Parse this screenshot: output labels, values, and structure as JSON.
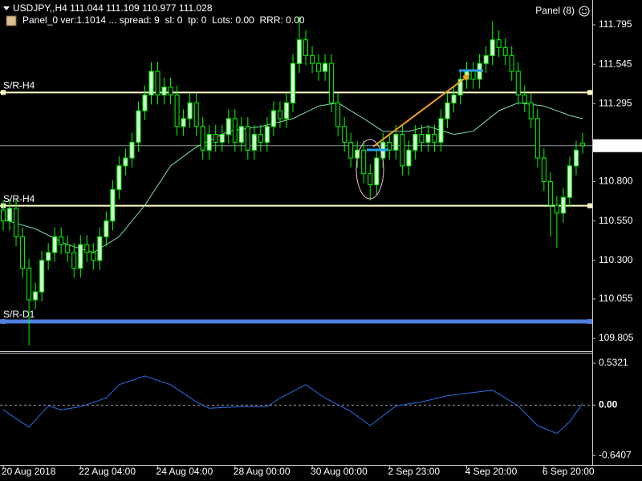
{
  "chart_data": {
    "type": "candlestick",
    "symbol": "USDJPY,,H4",
    "panel_info": "Panel_0 ver:1.1014 ... spread: 9  sl: 0  tp: 0  Lots: 0.00  RRR: 0.00",
    "panel_button": "Panel (8)",
    "up_color": "#d0ffd0",
    "down_color": "#000000",
    "candle_outline": "#00ff00",
    "open": [
      110.62,
      110.55,
      110.63,
      110.45,
      110.25,
      110.05,
      110.1,
      110.3,
      110.35,
      110.45,
      110.4,
      110.35,
      110.25,
      110.4,
      110.35,
      110.3,
      110.45,
      110.55,
      110.75,
      110.9,
      110.95,
      111.05,
      111.25,
      111.35,
      111.5,
      111.35,
      111.4,
      111.35,
      111.15,
      111.2,
      111.3,
      111.15,
      111.0,
      111.1,
      111.05,
      111.1,
      111.2,
      111.05,
      111.15,
      111.0,
      111.1,
      111.05,
      111.15,
      111.25,
      111.2,
      111.3,
      111.55,
      111.7,
      111.6,
      111.55,
      111.5,
      111.55,
      111.3,
      111.15,
      111.05,
      110.95,
      111.0,
      110.85,
      110.78,
      110.95,
      111.05,
      111.0,
      111.1,
      110.9,
      111.0,
      111.1,
      111.05,
      111.1,
      111.05,
      111.2,
      111.3,
      111.35,
      111.45,
      111.5,
      111.45,
      111.55,
      111.6,
      111.7,
      111.65,
      111.6,
      111.5,
      111.35,
      111.3,
      111.2,
      110.95,
      110.8,
      110.65,
      110.6,
      110.7,
      110.9,
      111.044
    ],
    "high": [
      110.68,
      110.69,
      110.69,
      110.51,
      110.31,
      110.16,
      110.36,
      110.41,
      110.51,
      110.51,
      110.46,
      110.41,
      110.46,
      110.46,
      110.41,
      110.51,
      110.61,
      110.81,
      110.96,
      111.01,
      111.11,
      111.31,
      111.41,
      111.56,
      111.56,
      111.46,
      111.46,
      111.41,
      111.26,
      111.36,
      111.36,
      111.21,
      111.16,
      111.16,
      111.16,
      111.26,
      111.26,
      111.21,
      111.21,
      111.16,
      111.16,
      111.21,
      111.31,
      111.31,
      111.36,
      111.61,
      111.85,
      111.76,
      111.66,
      111.61,
      111.61,
      111.61,
      111.36,
      111.21,
      111.11,
      111.06,
      111.06,
      110.91,
      111.01,
      111.11,
      111.11,
      111.16,
      111.16,
      111.06,
      111.16,
      111.16,
      111.16,
      111.16,
      111.26,
      111.36,
      111.41,
      111.51,
      111.56,
      111.56,
      111.61,
      111.66,
      111.82,
      111.76,
      111.71,
      111.66,
      111.56,
      111.41,
      111.36,
      111.26,
      111.01,
      110.86,
      110.71,
      110.76,
      110.96,
      111.06,
      111.109
    ],
    "low": [
      110.49,
      110.49,
      110.39,
      110.19,
      109.76,
      109.99,
      110.04,
      110.24,
      110.29,
      110.34,
      110.29,
      110.19,
      110.19,
      110.29,
      110.24,
      110.24,
      110.39,
      110.49,
      110.69,
      110.84,
      110.89,
      110.99,
      111.19,
      111.29,
      111.29,
      111.29,
      111.29,
      111.09,
      111.09,
      111.14,
      111.09,
      110.94,
      110.94,
      110.99,
      110.99,
      111.04,
      110.99,
      110.99,
      110.94,
      110.94,
      110.99,
      110.99,
      111.09,
      111.14,
      111.14,
      111.24,
      111.49,
      111.54,
      111.49,
      111.44,
      111.44,
      111.24,
      111.09,
      110.99,
      110.89,
      110.89,
      110.79,
      110.68,
      110.72,
      110.89,
      110.94,
      110.94,
      110.84,
      110.84,
      110.94,
      110.99,
      110.99,
      110.99,
      110.99,
      111.14,
      111.24,
      111.29,
      111.39,
      111.39,
      111.39,
      111.49,
      111.54,
      111.59,
      111.54,
      111.44,
      111.29,
      111.24,
      111.14,
      110.89,
      110.74,
      110.45,
      110.38,
      110.54,
      110.64,
      110.84,
      110.977
    ],
    "close": [
      110.55,
      110.63,
      110.45,
      110.25,
      110.05,
      110.1,
      110.3,
      110.35,
      110.45,
      110.4,
      110.35,
      110.25,
      110.4,
      110.35,
      110.3,
      110.45,
      110.55,
      110.75,
      110.9,
      110.95,
      111.05,
      111.25,
      111.35,
      111.5,
      111.35,
      111.4,
      111.35,
      111.15,
      111.2,
      111.3,
      111.15,
      111.0,
      111.1,
      111.05,
      111.1,
      111.2,
      111.05,
      111.15,
      111.0,
      111.1,
      111.05,
      111.15,
      111.25,
      111.2,
      111.3,
      111.55,
      111.7,
      111.6,
      111.55,
      111.5,
      111.55,
      111.3,
      111.15,
      111.05,
      110.95,
      111.0,
      110.85,
      110.78,
      110.95,
      111.05,
      111.0,
      111.1,
      110.9,
      111.0,
      111.1,
      111.05,
      111.1,
      111.05,
      111.2,
      111.3,
      111.35,
      111.45,
      111.5,
      111.45,
      111.55,
      111.6,
      111.7,
      111.65,
      111.6,
      111.5,
      111.35,
      111.3,
      111.2,
      110.95,
      110.8,
      110.65,
      110.6,
      110.7,
      110.9,
      111.0,
      111.028
    ],
    "moving_average": {
      "color": "#7fe0b0",
      "x": [
        0,
        5,
        10,
        14,
        18,
        22,
        26,
        30,
        35,
        40,
        45,
        49,
        52,
        56,
        59,
        63,
        66,
        70,
        73,
        77,
        80,
        84,
        88,
        90
      ],
      "values": [
        110.56,
        110.5,
        110.4,
        110.35,
        110.45,
        110.65,
        110.9,
        111.02,
        111.12,
        111.15,
        111.2,
        111.28,
        111.3,
        111.2,
        111.12,
        111.12,
        111.15,
        111.1,
        111.12,
        111.25,
        111.3,
        111.28,
        111.22,
        111.2
      ]
    },
    "levels": [
      {
        "name": "S/R-H4",
        "value": 111.366,
        "color": "#ffffc8",
        "width": 2
      },
      {
        "name": "S/R-H4",
        "value": 110.647,
        "color": "#ffffc8",
        "width": 2
      },
      {
        "name": "S/R-D1",
        "value": 109.912,
        "color": "#4f7fe0",
        "width": 5
      }
    ],
    "ylim": [
      109.729,
      111.953
    ],
    "yticks": [
      111.795,
      111.545,
      111.295,
      {
        "value": 110.8,
        "label": "110.800"
      },
      {
        "value": 110.55,
        "label": "110.550"
      },
      {
        "value": 110.3,
        "label": "110.300"
      },
      110.055,
      109.805
    ],
    "xlim": [
      -0.5,
      91.5
    ],
    "xticks": [
      {
        "value": 0,
        "label": "20 Aug 2018"
      },
      {
        "value": 12,
        "label": "22 Aug 04:00"
      },
      {
        "value": 24,
        "label": "24 Aug 04:00"
      },
      {
        "value": 36,
        "label": "28 Aug 00:00"
      },
      {
        "value": 48,
        "label": "30 Aug 00:00"
      },
      {
        "value": 60,
        "label": "2 Sep 23:00"
      },
      {
        "value": 72,
        "label": "4 Sep 20:00"
      },
      {
        "value": 84,
        "label": "6 Sep 20:00"
      }
    ],
    "oscillator": {
      "color": "#2a6fe8",
      "x": [
        0,
        4,
        7,
        9,
        12,
        16,
        18,
        22,
        26,
        30,
        32,
        37,
        41,
        43,
        47,
        50,
        54,
        57,
        61,
        65,
        69,
        73,
        76,
        80,
        83,
        86,
        88,
        90
      ],
      "values": [
        -0.06,
        -0.28,
        -0.01,
        -0.06,
        -0.02,
        0.09,
        0.26,
        0.37,
        0.26,
        0.04,
        -0.04,
        -0.02,
        -0.02,
        0.09,
        0.26,
        0.09,
        -0.08,
        -0.26,
        -0.01,
        0.04,
        0.12,
        0.16,
        0.19,
        -0.01,
        -0.26,
        -0.36,
        -0.21,
        0.02
      ],
      "ylim": [
        -0.76,
        0.655
      ],
      "yticks": [
        0.5321,
        {
          "value": 0,
          "label": "0.00"
        },
        -0.6407
      ]
    }
  }
}
